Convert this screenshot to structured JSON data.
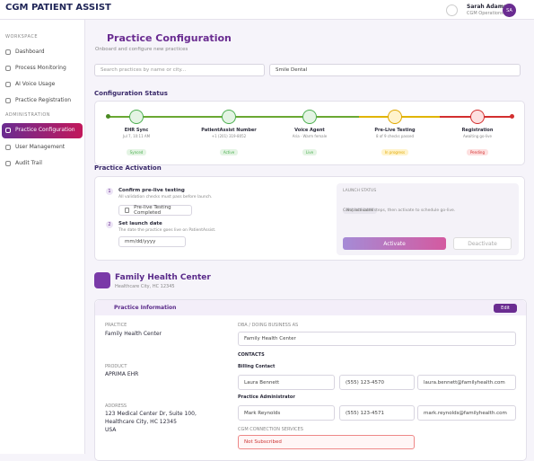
{
  "header": {
    "logo": "CGM PATIENT ASSIST",
    "user_name": "Sarah Adams",
    "user_role": "CGM Operations",
    "avatar": "SA"
  },
  "sidebar": {
    "sections": [
      {
        "title": "WORKSPACE",
        "items": [
          "Dashboard",
          "Process Monitoring",
          "AI Voice Usage",
          "Practice Registration"
        ]
      },
      {
        "title": "ADMINISTRATION",
        "items": [
          "Practice Configuration",
          "User Management",
          "Audit Trail"
        ]
      }
    ]
  },
  "page": {
    "title": "Practice Configuration",
    "subtitle": "Onboard and configure new practices",
    "search_placeholder": "Search practices by name or city...",
    "practice_select": "Smile Dental"
  },
  "status": {
    "title": "Configuration Status",
    "steps": [
      {
        "name": "EHR Sync",
        "detail": "Jul 7, 10:11 AM",
        "badge": "Synced"
      },
      {
        "name": "PatientAssist Number",
        "detail": "+1 (201) 319-8052",
        "badge": "Active"
      },
      {
        "name": "Voice Agent",
        "detail": "Aria · Warm female",
        "badge": "Live"
      },
      {
        "name": "Pre-Live Testing",
        "detail": "8 of 9 checks passed",
        "badge": "In progress"
      },
      {
        "name": "Registration",
        "detail": "Awaiting go-live",
        "badge": "Pending"
      }
    ]
  },
  "activation": {
    "title": "Practice Activation",
    "steps": [
      {
        "number": "1",
        "title": "Confirm pre-live testing",
        "hint": "All validation checks must pass before launch.",
        "control": "Pre-live Testing Completed"
      },
      {
        "number": "2",
        "title": "Set launch date",
        "hint": "The date the practice goes live on PatientAssist.",
        "control": "mm/dd/yyyy"
      }
    ],
    "status_label": "LAUNCH STATUS",
    "status_badge": "Not activated",
    "status_text": "Complete both steps, then activate to schedule go-live.",
    "activate": "Activate",
    "deactivate": "Deactivate"
  },
  "practice": {
    "name": "Family Health Center",
    "location": "Healthcare City, HC 12345"
  },
  "info": {
    "title": "Practice Information",
    "edit": "Edit",
    "practice_label": "PRACTICE",
    "practice_value": "Family Health Center",
    "product_label": "PRODUCT",
    "product_value": "APRIMA EHR",
    "address_label": "ADDRESS",
    "address_lines": [
      "123 Medical Center Dr, Suite 100,",
      "Healthcare City, HC 12345",
      "USA"
    ],
    "dba_label": "DBA / DOING BUSINESS AS",
    "dba_value": "Family Health Center",
    "contacts_label": "CONTACTS",
    "contacts": [
      {
        "role": "Billing Contact",
        "name": "Laura Bennett",
        "phone": "(555) 123-4570",
        "email": "laura.bennett@familyhealth.com"
      },
      {
        "role": "Practice Administrator",
        "name": "Mark Reynolds",
        "phone": "(555) 123-4571",
        "email": "mark.reynolds@familyhealth.com"
      }
    ],
    "services_label": "CGM CONNECTION SERVICES",
    "services_value": "Not Subscribed"
  }
}
